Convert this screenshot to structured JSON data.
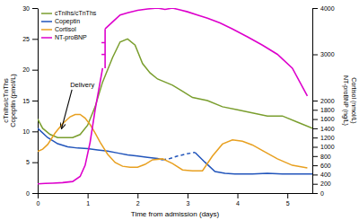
{
  "chart_data": {
    "type": "line",
    "xlabel": "Time from admission (days)",
    "ylabel": "cTnIhs/cTnThs\nCopeptin (pmol/L)",
    "y2label": "Cortisol (nmol/L)\nNT-proBNP (ng/L)",
    "xlim": [
      0,
      5.5
    ],
    "xticks": [
      0,
      1,
      2,
      3,
      4,
      5
    ],
    "ylim": [
      0,
      30
    ],
    "yticks": [
      0,
      5,
      10,
      15,
      20,
      25,
      30
    ],
    "y2lim": [
      0,
      4000
    ],
    "y2ticks": [
      0,
      200,
      400,
      600,
      800,
      1000,
      1200,
      1400,
      1600,
      1800,
      2000,
      3000,
      4000
    ],
    "grid": false,
    "legend": "upper left",
    "series": [
      {
        "name": "cTnIhs/cTnThs",
        "color": "#7a9e2e",
        "x": [
          0,
          0.1,
          0.25,
          0.4,
          0.55,
          0.7,
          0.85,
          1.0,
          1.15,
          1.3,
          1.5,
          1.65,
          1.8,
          1.95,
          2.1,
          2.25,
          2.4,
          2.55,
          2.7,
          2.9,
          3.1,
          3.4,
          3.7,
          4.0,
          4.3,
          4.6,
          4.9,
          5.2,
          5.5
        ],
        "values": [
          12,
          10.5,
          9.5,
          9,
          9,
          9,
          9.5,
          11,
          14,
          18,
          22,
          24.5,
          25,
          24,
          21,
          19.5,
          18.5,
          18,
          17.5,
          16.5,
          15.5,
          15,
          14,
          13.5,
          13,
          12.5,
          12.5,
          11.5,
          10.5
        ]
      },
      {
        "name": "Copeptin",
        "color": "#2255bb",
        "x": [
          0,
          0.2,
          0.4,
          0.6,
          0.8,
          1.0,
          1.2,
          1.4,
          1.6,
          1.8,
          2.0,
          2.2,
          2.4,
          2.5
        ],
        "values": [
          10.5,
          9.0,
          8.0,
          7.5,
          7.3,
          7.2,
          7.0,
          6.8,
          6.5,
          6.2,
          6.0,
          5.8,
          5.6,
          5.4
        ]
      },
      {
        "color": "#2255bb",
        "line_style": "dashed",
        "x": [
          2.5,
          2.65,
          2.8,
          2.95,
          3.15
        ],
        "values": [
          5.4,
          5.6,
          6.0,
          6.3,
          6.6
        ]
      },
      {
        "color": "#2255bb",
        "x": [
          3.15,
          3.35,
          3.55,
          3.75,
          3.95,
          4.1,
          4.3,
          4.6,
          4.9,
          5.2,
          5.5
        ],
        "values": [
          6.6,
          5.0,
          3.5,
          3.2,
          3.1,
          3.1,
          3.1,
          3.2,
          3.1,
          3.1,
          3.1
        ]
      },
      {
        "name": "Cortisol",
        "color": "#e8a020",
        "axis": "y2",
        "x": [
          0,
          0.1,
          0.2,
          0.35,
          0.5,
          0.65,
          0.75,
          0.85,
          0.95,
          1.05,
          1.15,
          1.25,
          1.4,
          1.55,
          1.7,
          1.85,
          2.0,
          2.15,
          2.3,
          2.5,
          2.7,
          2.9,
          3.1,
          3.3,
          3.5,
          3.7,
          3.9,
          4.1,
          4.3,
          4.5,
          4.8,
          5.1,
          5.4
        ],
        "values": [
          900,
          950,
          1050,
          1300,
          1500,
          1650,
          1700,
          1700,
          1620,
          1480,
          1300,
          1100,
          840,
          660,
          580,
          560,
          560,
          620,
          720,
          740,
          640,
          500,
          480,
          480,
          800,
          1060,
          1150,
          1120,
          1040,
          920,
          740,
          600,
          545
        ]
      },
      {
        "name": "NT-proBNP",
        "color": "#dd00cc",
        "axis": "y2",
        "x": [
          0,
          0.15,
          0.3,
          0.5,
          0.7,
          0.85,
          0.95,
          1.05,
          1.15,
          1.3
        ],
        "values": [
          200,
          210,
          215,
          225,
          250,
          360,
          600,
          1100,
          1800,
          2700
        ]
      },
      {
        "color": "#dd00cc",
        "axis": "y2",
        "marker": "break",
        "x": [
          1.35,
          1.35
        ],
        "values": [
          2700,
          3550
        ]
      },
      {
        "color": "#dd00cc",
        "axis": "y2",
        "x": [
          1.35,
          1.5,
          1.65,
          1.8,
          2.0,
          2.2,
          2.4,
          2.55,
          2.7,
          2.85,
          3.0,
          3.2,
          3.4,
          3.65,
          3.9,
          4.2,
          4.5,
          4.8,
          5.1,
          5.4
        ],
        "values": [
          3550,
          3700,
          3850,
          3900,
          3950,
          3980,
          4000,
          3970,
          4000,
          3960,
          3920,
          3850,
          3780,
          3680,
          3550,
          3380,
          3200,
          3000,
          2700,
          2100
        ]
      }
    ],
    "annotations": [
      {
        "text": "Delivery",
        "x": 0.65,
        "y": 17.5,
        "arrow_x": 0.48,
        "arrow_y": 10.5
      }
    ]
  }
}
